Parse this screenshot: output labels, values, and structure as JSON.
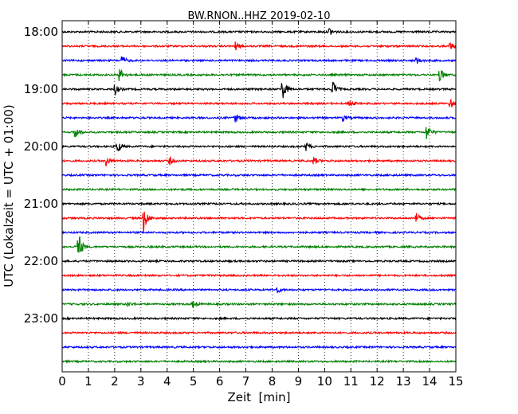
{
  "chart_data": {
    "type": "line",
    "title": "BW.RNON..HHZ 2019-02-10",
    "xlabel": "Zeit  [min]",
    "ylabel": "UTC (Lokalzeit = UTC + 01:00)",
    "xlim": [
      0,
      15
    ],
    "x_ticks": [
      "0",
      "1",
      "2",
      "3",
      "4",
      "5",
      "6",
      "7",
      "8",
      "9",
      "10",
      "11",
      "12",
      "13",
      "14",
      "15"
    ],
    "y_ticks": [
      "18:00",
      "19:00",
      "20:00",
      "21:00",
      "22:00",
      "23:00"
    ],
    "grid": "vertical dotted",
    "trace_colors": [
      "#000000",
      "#ff0000",
      "#0000ff",
      "#008000"
    ],
    "traces": [
      {
        "start": "18:00",
        "events": [
          {
            "x": 10.2,
            "amp": 0.35
          }
        ]
      },
      {
        "start": "18:15",
        "events": [
          {
            "x": 6.6,
            "amp": 0.4
          },
          {
            "x": 14.8,
            "amp": 0.3
          }
        ]
      },
      {
        "start": "18:30",
        "events": [
          {
            "x": 2.3,
            "amp": 0.35
          },
          {
            "x": 13.5,
            "amp": 0.3
          }
        ]
      },
      {
        "start": "18:45",
        "events": [
          {
            "x": 2.2,
            "amp": 0.6
          },
          {
            "x": 14.4,
            "amp": 0.6
          }
        ]
      },
      {
        "start": "19:00",
        "events": [
          {
            "x": 2.0,
            "amp": 0.5
          },
          {
            "x": 8.4,
            "amp": 1.0
          },
          {
            "x": 10.3,
            "amp": 0.8
          }
        ]
      },
      {
        "start": "19:15",
        "events": [
          {
            "x": 10.9,
            "amp": 0.45
          },
          {
            "x": 14.8,
            "amp": 0.45
          }
        ]
      },
      {
        "start": "19:30",
        "events": [
          {
            "x": 6.6,
            "amp": 0.4
          },
          {
            "x": 10.7,
            "amp": 0.3
          }
        ]
      },
      {
        "start": "19:45",
        "events": [
          {
            "x": 0.5,
            "amp": 0.6
          },
          {
            "x": 13.9,
            "amp": 0.7
          }
        ]
      },
      {
        "start": "20:00",
        "events": [
          {
            "x": 2.1,
            "amp": 0.55
          },
          {
            "x": 9.3,
            "amp": 0.35
          }
        ]
      },
      {
        "start": "20:15",
        "events": [
          {
            "x": 1.7,
            "amp": 0.45
          },
          {
            "x": 4.1,
            "amp": 0.35
          },
          {
            "x": 9.6,
            "amp": 0.3
          }
        ]
      },
      {
        "start": "20:30",
        "events": []
      },
      {
        "start": "20:45",
        "events": []
      },
      {
        "start": "21:00",
        "events": []
      },
      {
        "start": "21:15",
        "events": [
          {
            "x": 3.1,
            "amp": 1.35
          },
          {
            "x": 13.5,
            "amp": 0.4
          }
        ]
      },
      {
        "start": "21:30",
        "events": []
      },
      {
        "start": "21:45",
        "events": [
          {
            "x": 0.6,
            "amp": 1.5
          }
        ]
      },
      {
        "start": "22:00",
        "events": []
      },
      {
        "start": "22:15",
        "events": []
      },
      {
        "start": "22:30",
        "events": [
          {
            "x": 8.2,
            "amp": 0.25
          }
        ]
      },
      {
        "start": "22:45",
        "events": [
          {
            "x": 2.5,
            "amp": 0.2
          },
          {
            "x": 5.0,
            "amp": 0.25
          }
        ]
      },
      {
        "start": "23:00",
        "events": []
      },
      {
        "start": "23:15",
        "events": []
      },
      {
        "start": "23:30",
        "events": []
      },
      {
        "start": "23:45",
        "events": []
      }
    ]
  }
}
